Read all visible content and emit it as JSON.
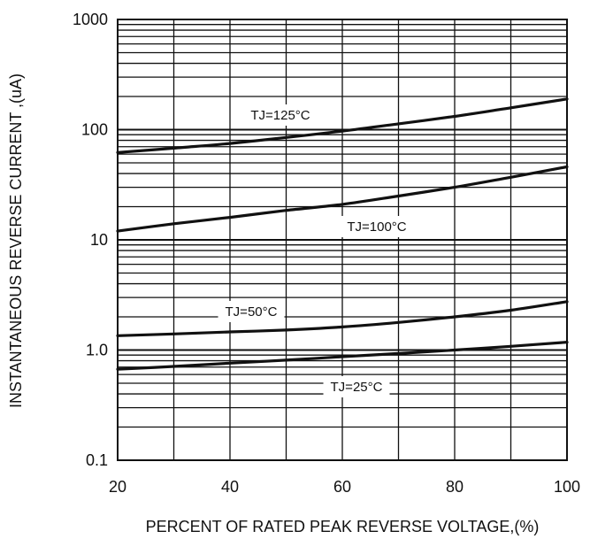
{
  "chart_data": {
    "type": "line",
    "title": "",
    "xlabel": "PERCENT OF RATED PEAK REVERSE VOLTAGE,(%)",
    "ylabel": "INSTANTANEOUS  REVERSE  CURRENT ,(uA)",
    "xlim": [
      20,
      100
    ],
    "ylim": [
      0.1,
      1000
    ],
    "yscale": "log",
    "grid": true,
    "x_ticks": [
      20,
      40,
      60,
      80,
      100
    ],
    "x_tick_labels": [
      "20",
      "40",
      "60",
      "80",
      "100"
    ],
    "y_ticks": [
      0.1,
      1,
      10,
      100,
      1000
    ],
    "y_tick_labels": [
      "0.1",
      "1.0",
      "10",
      "100",
      "1000"
    ],
    "series": [
      {
        "name": "TJ=125°C",
        "color": "#111111",
        "x": [
          20,
          30,
          40,
          50,
          60,
          70,
          80,
          90,
          100
        ],
        "y": [
          62,
          68,
          75,
          85,
          97,
          113,
          132,
          158,
          190
        ]
      },
      {
        "name": "TJ=100°C",
        "color": "#111111",
        "x": [
          20,
          30,
          40,
          50,
          60,
          70,
          80,
          90,
          100
        ],
        "y": [
          12,
          14,
          16,
          18.5,
          21,
          25,
          30,
          37,
          46
        ]
      },
      {
        "name": "TJ=50°C",
        "color": "#111111",
        "x": [
          20,
          30,
          40,
          50,
          60,
          70,
          80,
          90,
          100
        ],
        "y": [
          1.35,
          1.4,
          1.46,
          1.52,
          1.62,
          1.78,
          2.0,
          2.3,
          2.75
        ]
      },
      {
        "name": "TJ=25°C",
        "color": "#111111",
        "x": [
          20,
          30,
          40,
          50,
          60,
          70,
          80,
          90,
          100
        ],
        "y": [
          0.67,
          0.71,
          0.76,
          0.81,
          0.87,
          0.93,
          1.0,
          1.08,
          1.18
        ]
      }
    ]
  }
}
